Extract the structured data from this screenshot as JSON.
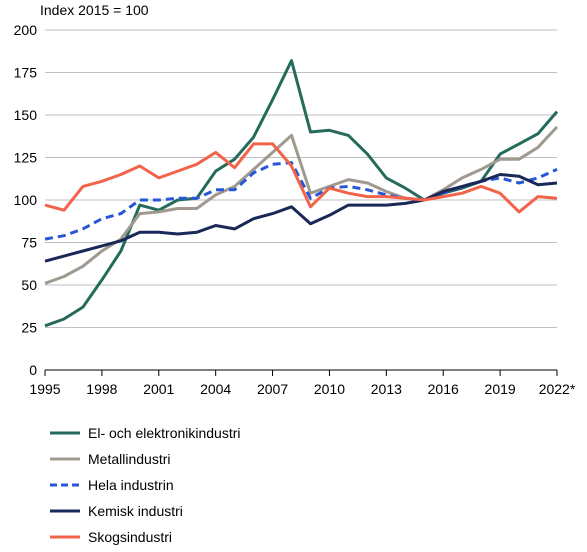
{
  "chart_data": {
    "type": "line",
    "ylabel": "Index 2015 = 100",
    "ylim": [
      0,
      200
    ],
    "yticks": [
      0,
      25,
      50,
      75,
      100,
      125,
      150,
      175,
      200
    ],
    "xlim": [
      1995,
      2022
    ],
    "xticks": [
      1995,
      1998,
      2001,
      2004,
      2007,
      2010,
      2013,
      2016,
      2019,
      2022
    ],
    "xtick_labels": [
      "1995",
      "1998",
      "2001",
      "2004",
      "2007",
      "2010",
      "2013",
      "2016",
      "2019",
      "2022*"
    ],
    "grid": "horizontal",
    "legend_position": "bottom",
    "x": [
      1995,
      1996,
      1997,
      1998,
      1999,
      2000,
      2001,
      2002,
      2003,
      2004,
      2005,
      2006,
      2007,
      2008,
      2009,
      2010,
      2011,
      2012,
      2013,
      2014,
      2015,
      2016,
      2017,
      2018,
      2019,
      2020,
      2021,
      2022
    ],
    "series": [
      {
        "name": "El- och elektronikindustri",
        "color": "#256b5c",
        "dash": "solid",
        "values": [
          26,
          30,
          37,
          53,
          70,
          97,
          94,
          100,
          101,
          117,
          124,
          137,
          159,
          182,
          140,
          141,
          138,
          127,
          113,
          107,
          100,
          104,
          107,
          111,
          127,
          133,
          139,
          152
        ]
      },
      {
        "name": "Metallindustri",
        "color": "#a09990",
        "dash": "solid",
        "values": [
          51,
          55,
          61,
          70,
          77,
          92,
          93,
          95,
          95,
          103,
          108,
          118,
          128,
          138,
          104,
          108,
          112,
          110,
          105,
          101,
          100,
          106,
          113,
          118,
          124,
          124,
          131,
          143
        ]
      },
      {
        "name": "Hela industrin",
        "color": "#2756d6",
        "dash": "dashed",
        "values": [
          77,
          79,
          83,
          89,
          92,
          100,
          100,
          101,
          101,
          106,
          106,
          116,
          121,
          122,
          101,
          107,
          108,
          106,
          103,
          101,
          100,
          104,
          108,
          111,
          113,
          110,
          113,
          118
        ]
      },
      {
        "name": "Kemisk industri",
        "color": "#1a2858",
        "dash": "solid",
        "values": [
          64,
          67,
          70,
          73,
          76,
          81,
          81,
          80,
          81,
          85,
          83,
          89,
          92,
          96,
          86,
          91,
          97,
          97,
          97,
          98,
          100,
          105,
          108,
          111,
          115,
          114,
          109,
          110
        ]
      },
      {
        "name": "Skogsindustri",
        "color": "#f2634a",
        "dash": "solid",
        "values": [
          97,
          94,
          108,
          111,
          115,
          120,
          113,
          117,
          121,
          128,
          119,
          133,
          133,
          120,
          96,
          107,
          104,
          102,
          102,
          101,
          100,
          102,
          104,
          108,
          104,
          93,
          102,
          101
        ]
      }
    ]
  }
}
